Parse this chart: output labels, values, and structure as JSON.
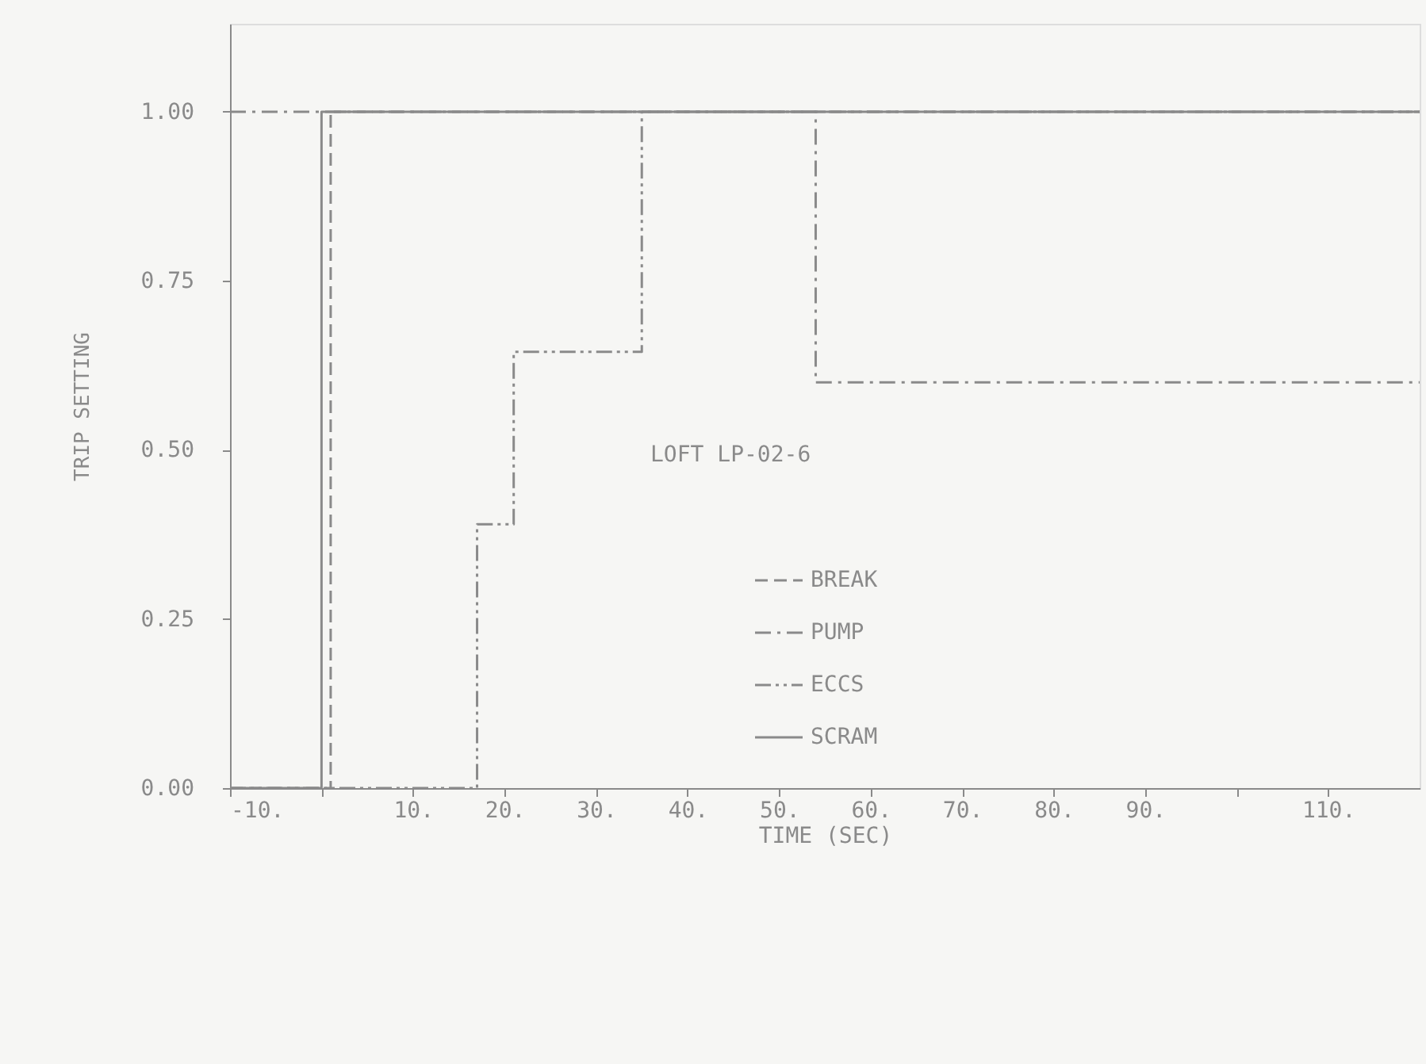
{
  "chart_data": {
    "type": "step",
    "xlabel": "TIME (SEC)",
    "ylabel": "TRIP SETTING",
    "annotations": [
      "LOFT LP-02-6"
    ],
    "xlim": [
      -10,
      120
    ],
    "xticks": [
      {
        "value": -10,
        "label": "-10."
      },
      {
        "value": 0,
        "label": null
      },
      {
        "value": 10,
        "label": "10."
      },
      {
        "value": 20,
        "label": "20."
      },
      {
        "value": 30,
        "label": "30."
      },
      {
        "value": 40,
        "label": "40."
      },
      {
        "value": 50,
        "label": "50."
      },
      {
        "value": 60,
        "label": "60."
      },
      {
        "value": 70,
        "label": "70."
      },
      {
        "value": 80,
        "label": "80."
      },
      {
        "value": 90,
        "label": "90."
      },
      {
        "value": 100,
        "label": null
      },
      {
        "value": 110,
        "label": "110."
      }
    ],
    "ylim": [
      0,
      1.13
    ],
    "yticks": [
      {
        "value": 0,
        "label": "0.00"
      },
      {
        "value": 0.25,
        "label": "0.25"
      },
      {
        "value": 0.5,
        "label": "0.50"
      },
      {
        "value": 0.75,
        "label": "0.75"
      },
      {
        "value": 1.0,
        "label": "1.00"
      }
    ],
    "grid": false,
    "legend": "bottom",
    "series": [
      {
        "name": "BREAK",
        "color": "#8a8a8a",
        "line_style": "dashed",
        "x": [
          -10,
          1,
          120
        ],
        "values": [
          0,
          1,
          1
        ]
      },
      {
        "name": "PUMP",
        "color": "#8a8a8a",
        "line_style": "dashed",
        "x": [
          -10,
          54,
          120
        ],
        "values": [
          1,
          0.6,
          0.6
        ]
      },
      {
        "name": "ECCS",
        "color": "#8a8a8a",
        "line_style": "dotted",
        "x": [
          -10,
          17,
          21,
          35,
          120
        ],
        "values": [
          0,
          0.39,
          0.645,
          1,
          1
        ]
      },
      {
        "name": "SCRAM",
        "color": "#8a8a8a",
        "line_style": "solid",
        "x": [
          -10,
          0,
          120
        ],
        "values": [
          0,
          1,
          1
        ]
      }
    ]
  }
}
